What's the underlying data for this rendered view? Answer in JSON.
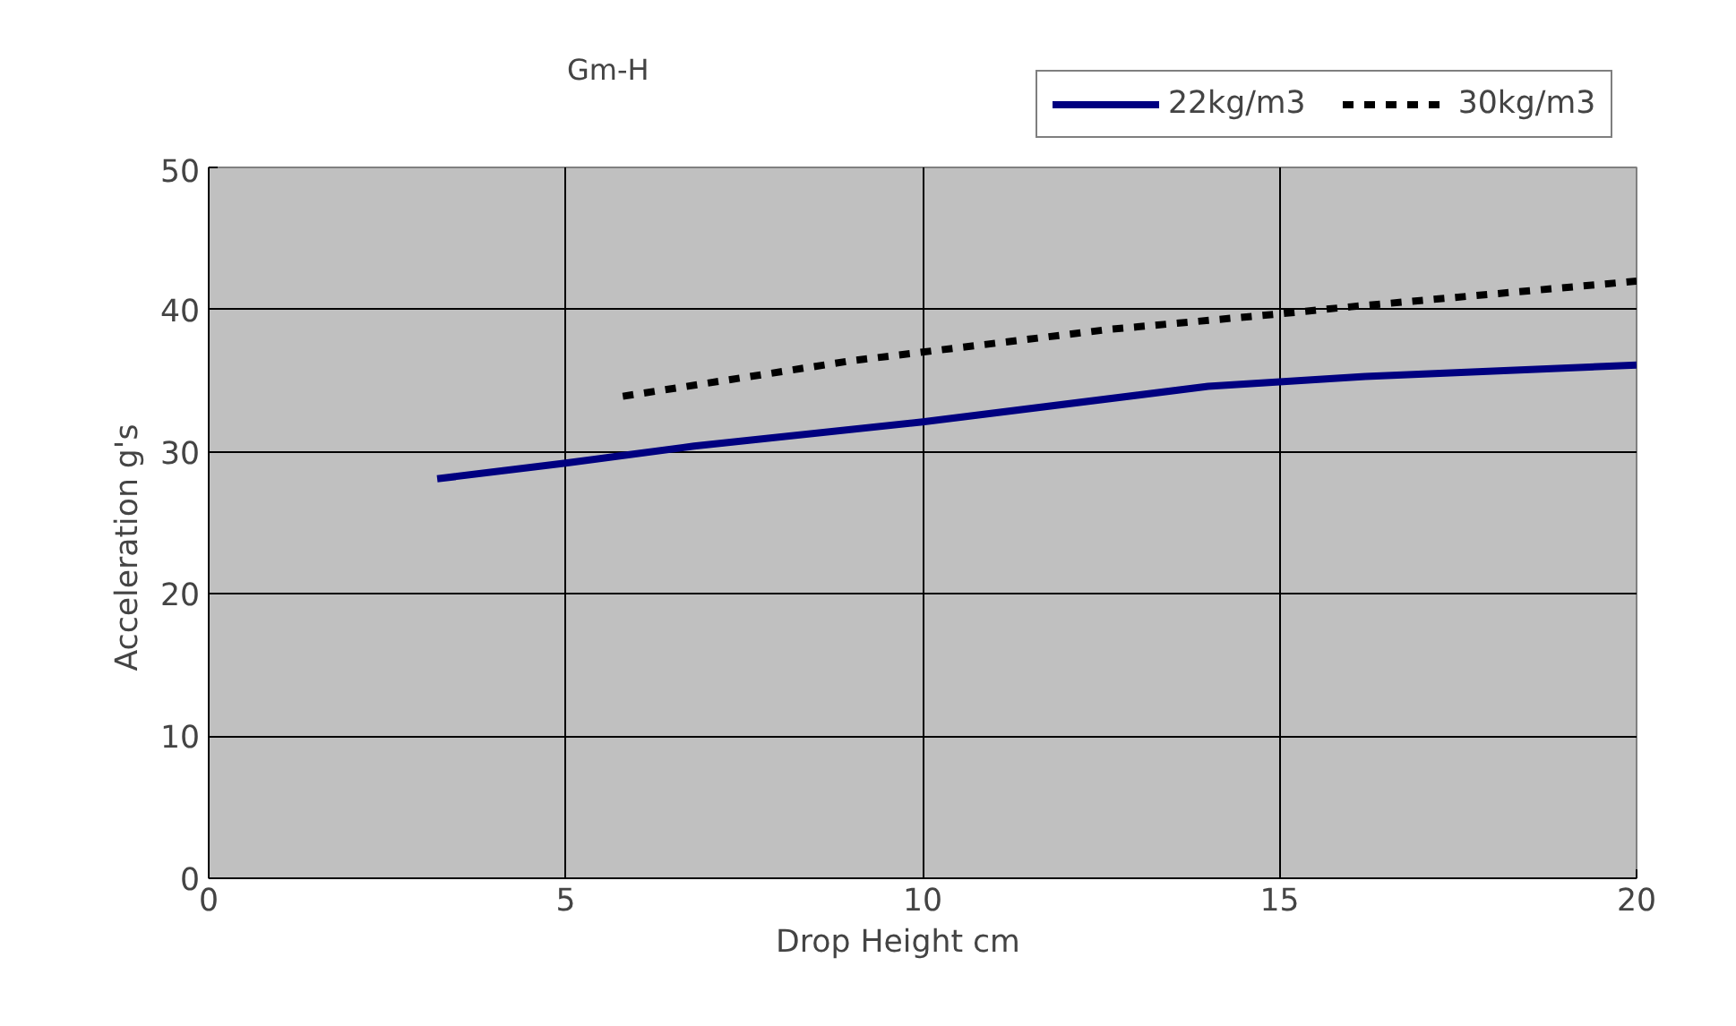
{
  "chart_data": {
    "type": "line",
    "title": "Gm-H",
    "xlabel": "Drop Height      cm",
    "ylabel": "Acceleration      g's",
    "xlim": [
      0,
      20
    ],
    "xticks": [
      0,
      5,
      10,
      15,
      20
    ],
    "ylim": [
      0,
      50
    ],
    "yticks": [
      0,
      10,
      20,
      30,
      40,
      50
    ],
    "grid": true,
    "legend": "top right",
    "marker": "none",
    "series": [
      {
        "name": "22kg/m3",
        "color": "#000080",
        "line_style": "solid",
        "x": [
          3.2,
          5,
          5.9,
          6.8,
          10,
          14,
          16.2,
          20
        ],
        "values": [
          28.1,
          29.2,
          29.8,
          30.4,
          32.1,
          34.6,
          35.3,
          36.1
        ]
      },
      {
        "name": "30kg/m3",
        "color": "#000000",
        "line_style": "dashed",
        "x": [
          5.8,
          9,
          12.6,
          15,
          16,
          20
        ],
        "values": [
          33.9,
          36.4,
          38.6,
          39.7,
          40.2,
          42.0
        ]
      }
    ]
  }
}
